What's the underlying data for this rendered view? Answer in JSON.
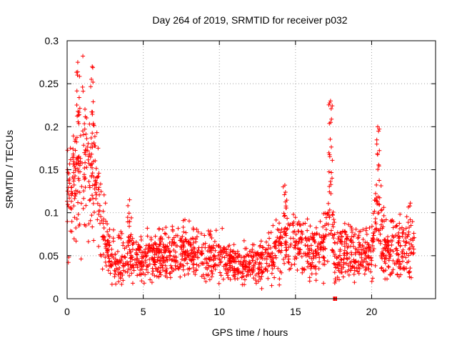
{
  "chart_data": {
    "type": "scatter",
    "title": "Day 264 of 2019, SRMTID for receiver p032",
    "xlabel": "GPS time / hours",
    "ylabel": "SRMTID / TECUs",
    "xlim": [
      0,
      24.2
    ],
    "ylim": [
      0,
      0.3
    ],
    "x_ticks": [
      0,
      5,
      10,
      15,
      20
    ],
    "x_tick_labels": [
      "0",
      "5",
      "10",
      "15",
      "20"
    ],
    "y_ticks": [
      0,
      0.05,
      0.1,
      0.15,
      0.2,
      0.25,
      0.3
    ],
    "y_tick_labels": [
      "0",
      "0.05",
      "0.1",
      "0.15",
      "0.2",
      "0.25",
      "0.3"
    ],
    "grid": true,
    "marker": "plus",
    "color": "#ff0000",
    "envelope": {
      "description": "approximate mean SRMTID level vs time (hours); points scattered around it",
      "x": [
        0,
        0.5,
        1.0,
        1.5,
        2.0,
        2.3,
        2.8,
        4,
        6,
        8,
        10,
        11.5,
        13,
        14.5,
        15.5,
        16.5,
        17.0,
        17.3,
        17.6,
        18.5,
        20,
        20.3,
        21,
        22,
        22.8
      ],
      "y": [
        0.11,
        0.14,
        0.17,
        0.15,
        0.13,
        0.08,
        0.05,
        0.045,
        0.05,
        0.055,
        0.045,
        0.04,
        0.045,
        0.07,
        0.06,
        0.05,
        0.07,
        0.12,
        0.05,
        0.055,
        0.05,
        0.1,
        0.055,
        0.06,
        0.065
      ]
    },
    "spikes": [
      {
        "x": 0.7,
        "y": 0.275
      },
      {
        "x": 1.65,
        "y": 0.27
      },
      {
        "x": 17.3,
        "y": 0.23
      },
      {
        "x": 20.4,
        "y": 0.2
      },
      {
        "x": 14.3,
        "y": 0.132
      },
      {
        "x": 4.1,
        "y": 0.115
      },
      {
        "x": 17.6,
        "y": 0.0
      }
    ],
    "point_count": 1800
  }
}
